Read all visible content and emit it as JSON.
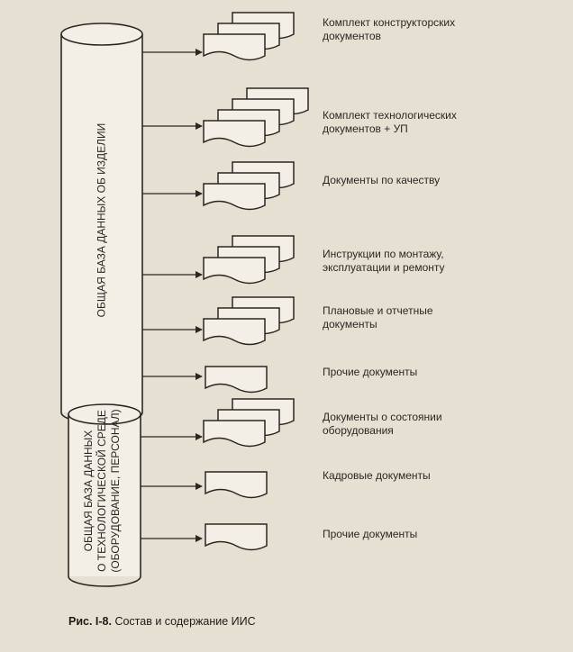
{
  "cylinders": {
    "top": "ОБЩАЯ БАЗА ДАННЫХ ОБ ИЗДЕЛИИ",
    "bottom_lines": [
      "ОБЩАЯ БАЗА ДАННЫХ",
      "О ТЕХНОЛОГИЧЕСКОЙ СРЕДЕ",
      "(ОБОРУДОВАНИЕ, ПЕРСОНАЛ)"
    ]
  },
  "documents": [
    {
      "lines": [
        "Комплект конструкторских",
        "документов"
      ]
    },
    {
      "lines": [
        "Комплект технологических",
        "документов + УП"
      ]
    },
    {
      "lines": [
        "Документы по качеству"
      ]
    },
    {
      "lines": [
        "Инструкции по монтажу,",
        "эксплуатации и ремонту"
      ]
    },
    {
      "lines": [
        "Плановые и отчетные",
        "документы"
      ]
    },
    {
      "lines": [
        "Прочие документы"
      ]
    },
    {
      "lines": [
        "Документы о состоянии",
        "оборудования"
      ]
    },
    {
      "lines": [
        "Кадровые документы"
      ]
    },
    {
      "lines": [
        "Прочие документы"
      ]
    }
  ],
  "caption": {
    "prefix": "Рис. I-8.",
    "text": " Состав и содержание ИИС"
  },
  "colors": {
    "background": "#e6e0d3",
    "line": "#2a2723",
    "paper": "#f3efe6"
  }
}
